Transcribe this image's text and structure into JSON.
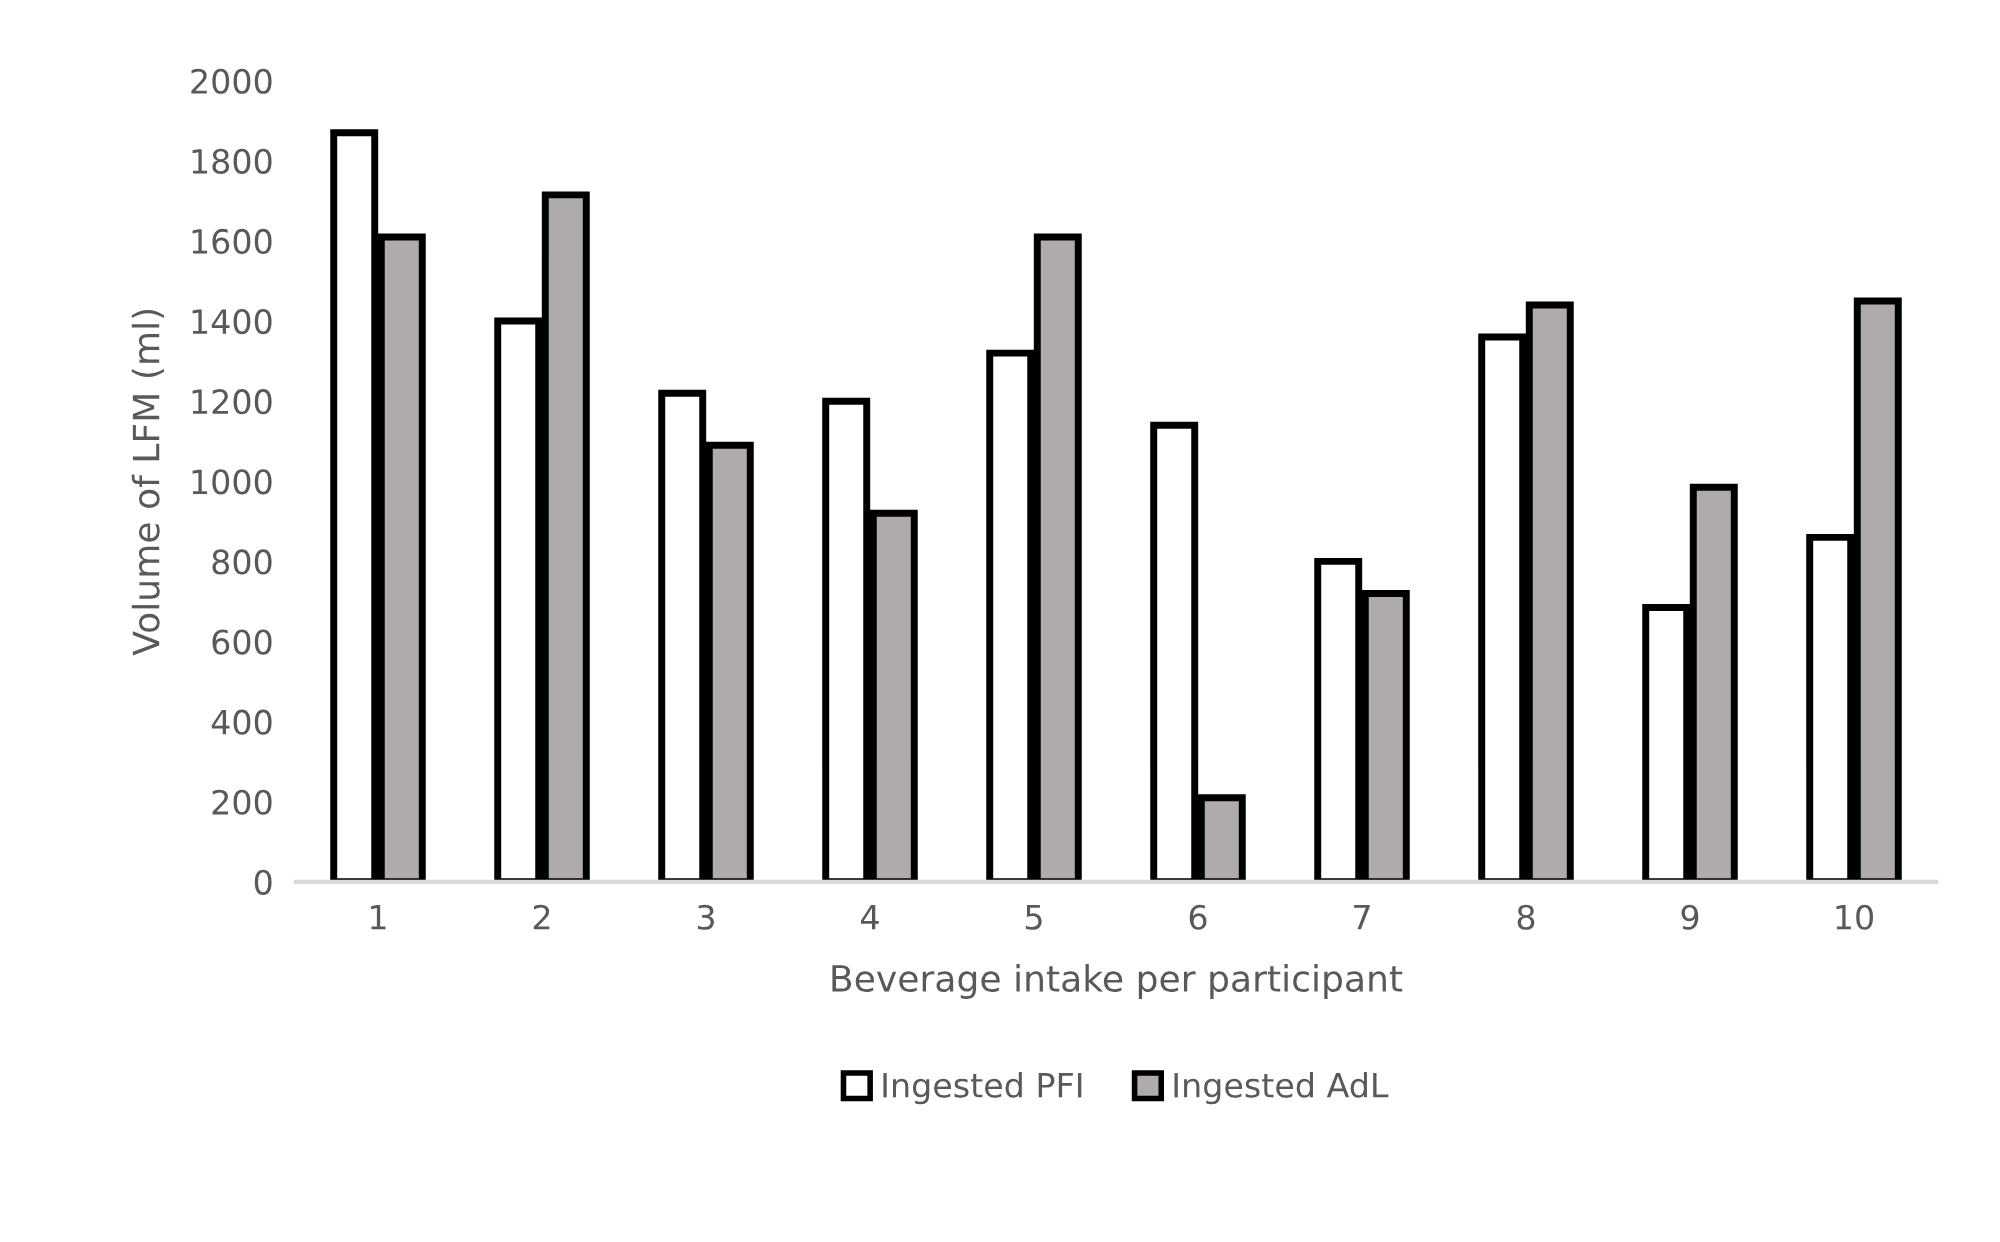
{
  "chart_data": {
    "type": "bar",
    "xlabel": "Beverage intake per participant",
    "ylabel": "Volume of LFM (ml)",
    "categories": [
      "1",
      "2",
      "3",
      "4",
      "5",
      "6",
      "7",
      "8",
      "9",
      "10"
    ],
    "series": [
      {
        "name": "Ingested PFI",
        "color": "#ffffff",
        "values": [
          1870,
          1400,
          1220,
          1200,
          1320,
          1140,
          800,
          1360,
          685,
          860
        ]
      },
      {
        "name": "Ingested AdL",
        "color": "#afabab",
        "values": [
          1610,
          1715,
          1090,
          920,
          1610,
          210,
          720,
          1440,
          985,
          1450
        ]
      }
    ],
    "ylim": [
      0,
      2000
    ],
    "yticks": [
      0,
      200,
      400,
      600,
      800,
      1000,
      1200,
      1400,
      1600,
      1800,
      2000
    ],
    "grid": false,
    "legend": "bottom"
  }
}
